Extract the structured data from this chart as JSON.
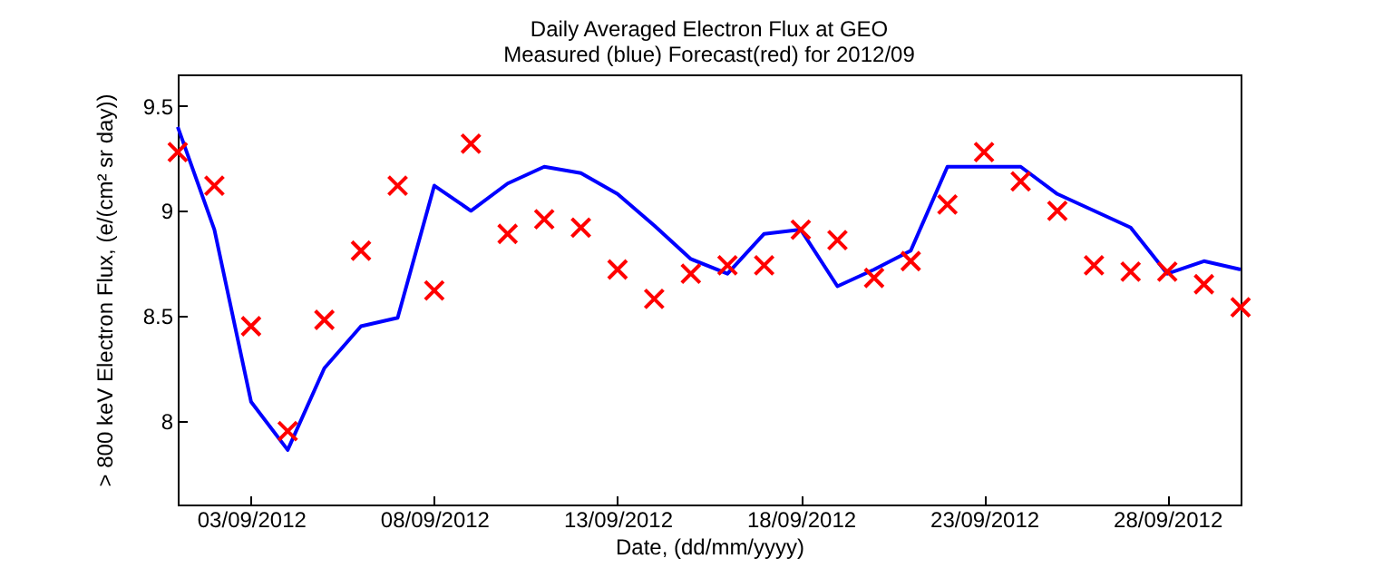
{
  "chart_data": {
    "type": "line",
    "title": "Daily Averaged Electron Flux at GEO",
    "subtitle": "Measured (blue) Forecast(red) for 2012/09",
    "xlabel": "Date, (dd/mm/yyyy)",
    "ylabel": "> 800 keV Electron Flux, (e/(cm² sr day))",
    "x": [
      "2012-09-01",
      "2012-09-02",
      "2012-09-03",
      "2012-09-04",
      "2012-09-05",
      "2012-09-06",
      "2012-09-07",
      "2012-09-08",
      "2012-09-09",
      "2012-09-10",
      "2012-09-11",
      "2012-09-12",
      "2012-09-13",
      "2012-09-14",
      "2012-09-15",
      "2012-09-16",
      "2012-09-17",
      "2012-09-18",
      "2012-09-19",
      "2012-09-20",
      "2012-09-21",
      "2012-09-22",
      "2012-09-23",
      "2012-09-24",
      "2012-09-25",
      "2012-09-26",
      "2012-09-27",
      "2012-09-28",
      "2012-09-29",
      "2012-09-30"
    ],
    "series": [
      {
        "type": "line",
        "color": "#0000ff",
        "marker": "none",
        "values": [
          9.4,
          8.91,
          8.09,
          7.86,
          8.25,
          8.45,
          8.49,
          9.12,
          9.0,
          9.13,
          9.21,
          9.18,
          9.08,
          8.93,
          8.77,
          8.7,
          8.89,
          8.91,
          8.64,
          8.72,
          8.81,
          9.21,
          9.21,
          9.21,
          9.08,
          9.0,
          8.92,
          8.7,
          8.76,
          8.72
        ]
      },
      {
        "type": "scatter",
        "color": "#ff0000",
        "marker": "cross",
        "values": [
          9.28,
          9.12,
          8.45,
          7.95,
          8.48,
          8.81,
          9.12,
          8.62,
          9.32,
          8.89,
          8.96,
          8.92,
          8.72,
          8.58,
          8.7,
          8.74,
          8.74,
          8.91,
          8.86,
          8.68,
          8.76,
          9.03,
          9.28,
          9.14,
          9.0,
          8.74,
          8.71,
          8.71,
          8.65,
          8.54
        ]
      }
    ],
    "xlim": [
      "2012-09-01",
      "2012-09-30"
    ],
    "xticks": [
      {
        "value": "2012-09-03",
        "label": "03/09/2012"
      },
      {
        "value": "2012-09-08",
        "label": "08/09/2012"
      },
      {
        "value": "2012-09-13",
        "label": "13/09/2012"
      },
      {
        "value": "2012-09-18",
        "label": "18/09/2012"
      },
      {
        "value": "2012-09-23",
        "label": "23/09/2012"
      },
      {
        "value": "2012-09-28",
        "label": "28/09/2012"
      }
    ],
    "ylim": [
      7.6,
      9.65
    ],
    "yticks": [
      8,
      8.5,
      9,
      9.5
    ],
    "grid": false
  }
}
